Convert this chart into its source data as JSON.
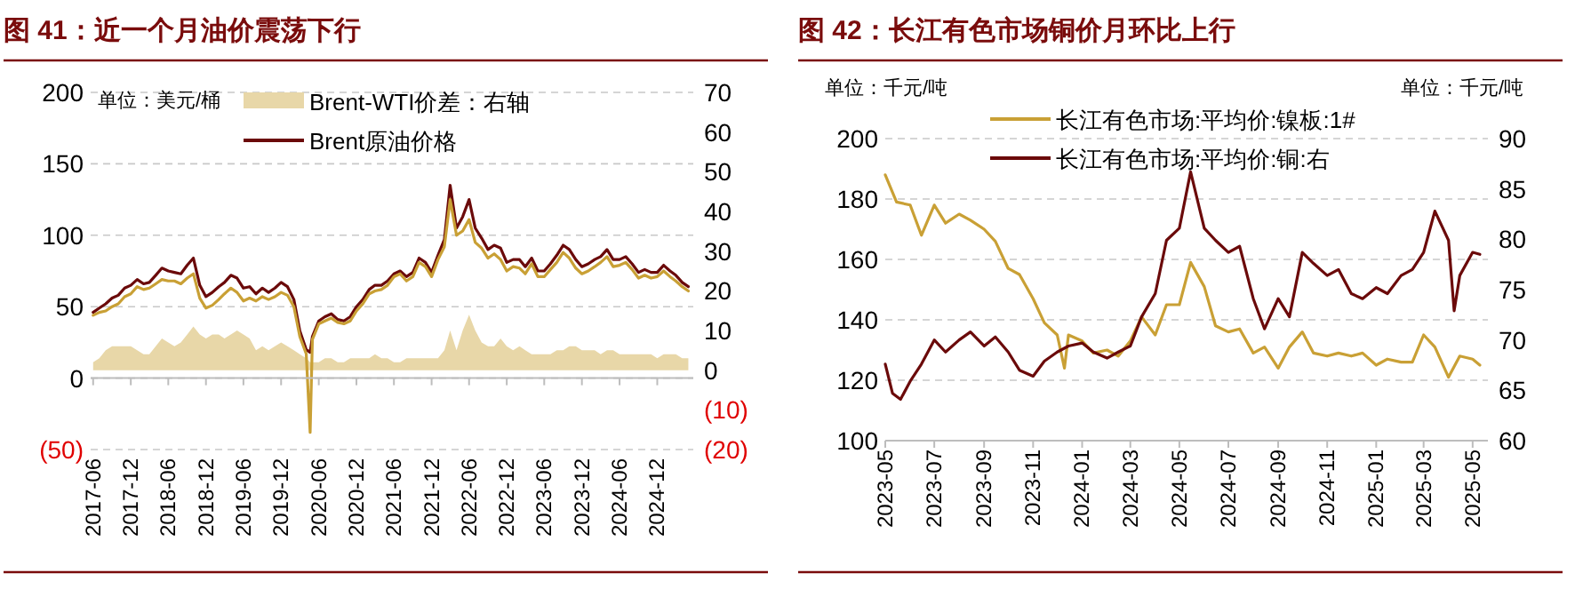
{
  "chart_data": [
    {
      "type": "line",
      "title": "图 41：近一个月油价震荡下行",
      "annotations": [
        "单位：美元/桶"
      ],
      "x": [
        "2017-06",
        "2017-07",
        "2017-08",
        "2017-09",
        "2017-10",
        "2017-11",
        "2017-12",
        "2018-01",
        "2018-02",
        "2018-03",
        "2018-04",
        "2018-05",
        "2018-06",
        "2018-07",
        "2018-08",
        "2018-09",
        "2018-10",
        "2018-11",
        "2018-12",
        "2019-01",
        "2019-02",
        "2019-03",
        "2019-04",
        "2019-05",
        "2019-06",
        "2019-07",
        "2019-08",
        "2019-09",
        "2019-10",
        "2019-11",
        "2019-12",
        "2020-01",
        "2020-02",
        "2020-03",
        "2020-04",
        "2020-04-20",
        "2020-05",
        "2020-06",
        "2020-07",
        "2020-08",
        "2020-09",
        "2020-10",
        "2020-11",
        "2020-12",
        "2021-01",
        "2021-02",
        "2021-03",
        "2021-04",
        "2021-05",
        "2021-06",
        "2021-07",
        "2021-08",
        "2021-09",
        "2021-10",
        "2021-11",
        "2021-12",
        "2022-01",
        "2022-02",
        "2022-03",
        "2022-04",
        "2022-05",
        "2022-06",
        "2022-07",
        "2022-08",
        "2022-09",
        "2022-10",
        "2022-11",
        "2022-12",
        "2023-01",
        "2023-02",
        "2023-03",
        "2023-04",
        "2023-05",
        "2023-06",
        "2023-07",
        "2023-08",
        "2023-09",
        "2023-10",
        "2023-11",
        "2023-12",
        "2024-01",
        "2024-02",
        "2024-03",
        "2024-04",
        "2024-05",
        "2024-06",
        "2024-07",
        "2024-08",
        "2024-09",
        "2024-10",
        "2024-11",
        "2024-12",
        "2025-01",
        "2025-02",
        "2025-03",
        "2025-04",
        "2025-05"
      ],
      "xlim": [
        "2017-05-20",
        "2025-05-25"
      ],
      "xticks": [
        "2017-06",
        "2017-12",
        "2018-06",
        "2018-12",
        "2019-06",
        "2019-12",
        "2020-06",
        "2020-12",
        "2021-06",
        "2021-12",
        "2022-06",
        "2022-12",
        "2023-06",
        "2023-12",
        "2024-06",
        "2024-12"
      ],
      "ylim": [
        -50,
        200
      ],
      "yticks": [
        {
          "value": -50,
          "label": "(50)"
        },
        0,
        50,
        100,
        150,
        200
      ],
      "y2lim": [
        -20,
        70
      ],
      "y2ticks": [
        {
          "value": -20,
          "label": "(20)"
        },
        {
          "value": -10,
          "label": "(10)"
        },
        0,
        10,
        20,
        30,
        40,
        50,
        60,
        70
      ],
      "grid": "y",
      "legend": "top",
      "series": [
        {
          "name": "Brent-WTI价差：右轴",
          "type": "area",
          "axis": "y2",
          "color": "#e8d7a8",
          "values": [
            2,
            3,
            5,
            6,
            6,
            6,
            6,
            5,
            4,
            4,
            6,
            8,
            7,
            6,
            7,
            9,
            11,
            9,
            8,
            9,
            9,
            8,
            9,
            10,
            9,
            8,
            5,
            6,
            5,
            6,
            7,
            6,
            5,
            4,
            3,
            2,
            2,
            2,
            3,
            3,
            2,
            2,
            3,
            3,
            3,
            3,
            4,
            3,
            3,
            2,
            2,
            3,
            3,
            3,
            3,
            3,
            3,
            5,
            10,
            5,
            10,
            14,
            10,
            7,
            6,
            6,
            8,
            6,
            5,
            6,
            5,
            4,
            4,
            4,
            4,
            5,
            5,
            6,
            6,
            5,
            5,
            5,
            4,
            5,
            5,
            4,
            4,
            4,
            4,
            4,
            4,
            3,
            4,
            4,
            4,
            3,
            3
          ]
        },
        {
          "name": "Brent原油价格",
          "type": "line",
          "color": "#6b0a0a",
          "values": [
            46,
            49,
            52,
            56,
            58,
            63,
            65,
            69,
            66,
            67,
            72,
            77,
            75,
            74,
            73,
            79,
            84,
            65,
            57,
            60,
            64,
            67,
            72,
            70,
            63,
            64,
            59,
            63,
            60,
            63,
            67,
            64,
            55,
            33,
            20,
            18,
            29,
            40,
            43,
            45,
            41,
            40,
            43,
            50,
            55,
            62,
            65,
            65,
            68,
            73,
            75,
            71,
            74,
            84,
            81,
            74,
            86,
            97,
            135,
            105,
            113,
            125,
            105,
            98,
            90,
            93,
            91,
            81,
            83,
            83,
            78,
            84,
            75,
            75,
            80,
            86,
            93,
            90,
            83,
            78,
            80,
            83,
            85,
            90,
            83,
            83,
            85,
            80,
            74,
            76,
            74,
            74,
            79,
            75,
            72,
            67,
            64
          ]
        },
        {
          "type": "line",
          "color": "#c9a035",
          "values": [
            44,
            46,
            47,
            50,
            52,
            57,
            59,
            64,
            62,
            63,
            66,
            69,
            68,
            68,
            66,
            70,
            73,
            56,
            49,
            51,
            55,
            59,
            63,
            60,
            54,
            56,
            54,
            57,
            55,
            57,
            60,
            58,
            50,
            29,
            17,
            -38,
            27,
            38,
            40,
            42,
            39,
            38,
            40,
            47,
            52,
            59,
            61,
            62,
            65,
            71,
            73,
            68,
            71,
            81,
            78,
            71,
            83,
            92,
            125,
            100,
            103,
            111,
            95,
            91,
            84,
            87,
            83,
            75,
            78,
            77,
            73,
            80,
            71,
            71,
            76,
            81,
            88,
            84,
            77,
            73,
            75,
            78,
            81,
            85,
            78,
            79,
            81,
            76,
            70,
            72,
            70,
            71,
            75,
            71,
            68,
            64,
            61
          ]
        }
      ]
    },
    {
      "type": "line",
      "title": "图 42：长江有色市场铜价月环比上行",
      "annotations": [
        "单位：千元/吨",
        "单位：千元/吨"
      ],
      "xlim": [
        "2023-05-01",
        "2025-05-20"
      ],
      "xticks": [
        "2023-05",
        "2023-07",
        "2023-09",
        "2023-11",
        "2024-01",
        "2024-03",
        "2024-05",
        "2024-07",
        "2024-09",
        "2024-11",
        "2025-01",
        "2025-03",
        "2025-05"
      ],
      "ylim": [
        100,
        200
      ],
      "yticks": [
        100,
        120,
        140,
        160,
        180,
        200
      ],
      "y2lim": [
        60,
        90
      ],
      "y2ticks": [
        60,
        65,
        70,
        75,
        80,
        85,
        90
      ],
      "grid": "y",
      "legend": "top",
      "series": [
        {
          "name": "长江有色市场:平均价:镍板:1#",
          "type": "line",
          "color": "#c9a035",
          "x": [
            "2023-05-01",
            "2023-05-15",
            "2023-06-01",
            "2023-06-15",
            "2023-07-01",
            "2023-07-15",
            "2023-08-01",
            "2023-08-15",
            "2023-09-01",
            "2023-09-15",
            "2023-10-01",
            "2023-10-15",
            "2023-11-01",
            "2023-11-15",
            "2023-12-01",
            "2023-12-10",
            "2023-12-15",
            "2024-01-01",
            "2024-01-15",
            "2024-02-01",
            "2024-02-15",
            "2024-03-01",
            "2024-03-15",
            "2024-04-01",
            "2024-04-15",
            "2024-05-01",
            "2024-05-15",
            "2024-06-01",
            "2024-06-15",
            "2024-07-01",
            "2024-07-15",
            "2024-08-01",
            "2024-08-15",
            "2024-09-01",
            "2024-09-15",
            "2024-10-01",
            "2024-10-15",
            "2024-11-01",
            "2024-11-15",
            "2024-12-01",
            "2024-12-15",
            "2025-01-01",
            "2025-01-15",
            "2025-02-01",
            "2025-02-15",
            "2025-03-01",
            "2025-03-15",
            "2025-04-01",
            "2025-04-15",
            "2025-05-01",
            "2025-05-10"
          ],
          "values": [
            188,
            179,
            178,
            168,
            178,
            172,
            175,
            173,
            170,
            166,
            157,
            155,
            147,
            139,
            135,
            124,
            135,
            133,
            129,
            130,
            128,
            133,
            141,
            135,
            145,
            145,
            159,
            151,
            138,
            136,
            137,
            129,
            131,
            124,
            131,
            136,
            129,
            128,
            129,
            128,
            129,
            125,
            127,
            126,
            126,
            135,
            131,
            121,
            128,
            127,
            125
          ]
        },
        {
          "name": "长江有色市场:平均价:铜:右",
          "type": "line",
          "axis": "y2",
          "color": "#6b0a0a",
          "x": [
            "2023-05-01",
            "2023-05-10",
            "2023-05-20",
            "2023-06-01",
            "2023-06-15",
            "2023-07-01",
            "2023-07-15",
            "2023-08-01",
            "2023-08-15",
            "2023-09-01",
            "2023-09-15",
            "2023-10-01",
            "2023-10-15",
            "2023-11-01",
            "2023-11-15",
            "2023-12-01",
            "2023-12-15",
            "2024-01-01",
            "2024-01-15",
            "2024-02-01",
            "2024-02-15",
            "2024-03-01",
            "2024-03-15",
            "2024-04-01",
            "2024-04-15",
            "2024-05-01",
            "2024-05-15",
            "2024-06-01",
            "2024-06-15",
            "2024-07-01",
            "2024-07-15",
            "2024-08-01",
            "2024-08-15",
            "2024-09-01",
            "2024-09-15",
            "2024-10-01",
            "2024-10-15",
            "2024-11-01",
            "2024-11-15",
            "2024-12-01",
            "2024-12-15",
            "2025-01-01",
            "2025-01-15",
            "2025-02-01",
            "2025-02-15",
            "2025-03-01",
            "2025-03-15",
            "2025-04-01",
            "2025-04-08",
            "2025-04-15",
            "2025-05-01",
            "2025-05-10"
          ],
          "values": [
            67.6,
            64.7,
            64.1,
            65.9,
            67.6,
            70,
            68.8,
            70,
            70.8,
            69.4,
            70.3,
            68.8,
            67,
            66.4,
            67.9,
            68.8,
            69.4,
            69.7,
            68.8,
            68.2,
            68.8,
            69.4,
            72.3,
            74.6,
            79.9,
            81.1,
            86.7,
            81.1,
            79.9,
            78.7,
            79.3,
            74.1,
            71.1,
            74.1,
            72.3,
            78.7,
            77.6,
            76.4,
            77,
            74.6,
            74.1,
            75.2,
            74.6,
            76.4,
            77,
            78.7,
            82.8,
            79.9,
            72.9,
            76.4,
            78.7,
            78.5
          ]
        }
      ]
    }
  ]
}
